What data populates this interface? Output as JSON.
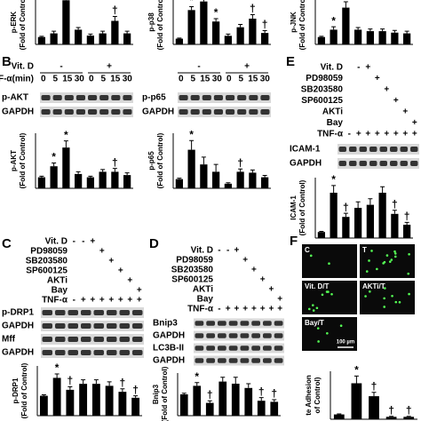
{
  "chart_data": [
    {
      "type": "bar",
      "ylabel": [
        "p-ERK",
        "(Fold of Control)"
      ],
      "color": "#000000",
      "ylim": [
        0,
        7
      ],
      "values": [
        1,
        1.5,
        6,
        2,
        1.2,
        1.5,
        3.2,
        1.5
      ],
      "errors": [
        0.1,
        0.3,
        1.0,
        0.3,
        0.2,
        0.3,
        0.6,
        0.3
      ],
      "annotations": [
        null,
        null,
        null,
        null,
        null,
        null,
        "†",
        null
      ]
    },
    {
      "type": "bar",
      "ylabel": [
        "p-p38",
        "(Fold of Control)"
      ],
      "color": "#000000",
      "ylim": [
        0,
        9
      ],
      "values": [
        1,
        6,
        7.5,
        4,
        1.5,
        3,
        4.5,
        2
      ],
      "errors": [
        0.1,
        0.6,
        0.8,
        0.5,
        0.3,
        0.5,
        0.7,
        0.4
      ],
      "annotations": [
        null,
        "*",
        null,
        "*",
        null,
        null,
        "†",
        "†"
      ]
    },
    {
      "type": "bar",
      "ylabel": [
        "p-JNK",
        "(Fold of Control)"
      ],
      "color": "#000000",
      "ylim": [
        0,
        7
      ],
      "values": [
        1,
        2,
        5,
        2,
        1.8,
        1.8,
        1.6,
        1.5
      ],
      "errors": [
        0.1,
        0.4,
        0.8,
        0.3,
        0.3,
        0.3,
        0.3,
        0.3
      ],
      "annotations": [
        null,
        "*",
        null,
        null,
        null,
        null,
        null,
        null
      ]
    },
    {
      "type": "bar",
      "ylabel": [
        "p-AKT",
        "(Fold of Control)"
      ],
      "color": "#000000",
      "ylim": [
        0,
        5
      ],
      "values": [
        1,
        2,
        3.7,
        1.3,
        1,
        1.5,
        1.5,
        1.2
      ],
      "errors": [
        0.1,
        0.3,
        0.6,
        0.2,
        0.1,
        0.2,
        0.3,
        0.2
      ],
      "annotations": [
        null,
        "*",
        "*",
        null,
        null,
        null,
        "†",
        null
      ]
    },
    {
      "type": "bar",
      "ylabel": [
        "p-p65",
        "(Fold of Control)"
      ],
      "color": "#000000",
      "ylim": [
        0,
        6
      ],
      "values": [
        1,
        4.2,
        2.6,
        1.8,
        0.5,
        1.8,
        1.7,
        1.2
      ],
      "errors": [
        0.1,
        1.0,
        0.8,
        0.8,
        0.1,
        0.3,
        0.3,
        0.2
      ],
      "annotations": [
        null,
        "*",
        null,
        null,
        null,
        "†",
        null,
        null
      ]
    },
    {
      "type": "bar",
      "ylabel": [
        "ICAM-1",
        "(Fold of Control)"
      ],
      "color": "#000000",
      "ylim": [
        0,
        10
      ],
      "values": [
        1,
        7.5,
        3.5,
        5,
        5.5,
        7.5,
        4,
        2.2
      ],
      "errors": [
        0.1,
        1.2,
        0.6,
        1.0,
        1.0,
        1.0,
        0.6,
        0.4
      ],
      "annotations": [
        null,
        "*",
        "†",
        null,
        null,
        null,
        "†",
        "†"
      ]
    },
    {
      "type": "bar",
      "ylabel": [
        "p-DRP1",
        "(Fold of Control)"
      ],
      "color": "#000000",
      "ylim": [
        0,
        2.5
      ],
      "values": [
        1,
        1.9,
        1.3,
        1.6,
        1.6,
        1.5,
        1.2,
        0.9
      ],
      "errors": [
        0.05,
        0.2,
        0.15,
        0.2,
        0.2,
        0.2,
        0.15,
        0.1
      ],
      "annotations": [
        null,
        "*",
        "†",
        null,
        null,
        null,
        "†",
        "†"
      ]
    },
    {
      "type": "bar",
      "ylabel": [
        "Bnip3",
        "(Fold of Control)"
      ],
      "color": "#000000",
      "ylim": [
        0,
        2
      ],
      "values": [
        1,
        1.4,
        0.6,
        1.6,
        1.5,
        1.3,
        0.7,
        0.65
      ],
      "errors": [
        0.05,
        0.15,
        0.1,
        0.2,
        0.3,
        0.2,
        0.15,
        0.1
      ],
      "annotations": [
        null,
        "*",
        "†",
        null,
        null,
        null,
        "†",
        "†"
      ]
    },
    {
      "type": "bar",
      "ylabel": [
        "te Adhesion",
        "of Control)"
      ],
      "color": "#000000",
      "ylim": [
        0,
        10
      ],
      "values": [
        1,
        7.5,
        4.8,
        0.5,
        0.5
      ],
      "errors": [
        0.1,
        1.5,
        0.8,
        0.1,
        0.1
      ],
      "annotations": [
        null,
        "*",
        "†",
        "†",
        "†"
      ]
    }
  ],
  "panel_B": {
    "letter": "B",
    "rows": [
      {
        "label": "Vit. D",
        "cells": [
          "-",
          "+"
        ]
      },
      {
        "label": "TNF-α(min)",
        "cells": [
          "0",
          "5",
          "15",
          "30",
          "0",
          "5",
          "15",
          "30"
        ]
      }
    ],
    "blots_left": [
      "p-AKT",
      "GAPDH"
    ],
    "blots_right": [
      "p-p65",
      "GAPDH"
    ]
  },
  "panel_E": {
    "letter": "E",
    "rows": [
      {
        "label": "Vit. D",
        "cells": [
          null,
          "-",
          "+",
          null,
          null,
          null,
          null,
          null
        ]
      },
      {
        "label": "PD98059",
        "cells": [
          null,
          null,
          null,
          "+",
          null,
          null,
          null,
          null
        ]
      },
      {
        "label": "SB203580",
        "cells": [
          null,
          null,
          null,
          null,
          "+",
          null,
          null,
          null
        ]
      },
      {
        "label": "SP600125",
        "cells": [
          null,
          null,
          null,
          null,
          null,
          "+",
          null,
          null
        ]
      },
      {
        "label": "AKTi",
        "cells": [
          null,
          null,
          null,
          null,
          null,
          null,
          "+",
          null
        ]
      },
      {
        "label": "Bay",
        "cells": [
          null,
          null,
          null,
          null,
          null,
          null,
          null,
          "+"
        ]
      },
      {
        "label": "TNF-α",
        "cells": [
          "-",
          "+",
          "+",
          "+",
          "+",
          "+",
          "+",
          "+"
        ]
      }
    ],
    "blots": [
      "ICAM-1",
      "GAPDH"
    ]
  },
  "panel_C": {
    "letter": "C",
    "rows": [
      {
        "label": "Vit. D",
        "cells": [
          "-",
          "-",
          "+",
          null,
          null,
          null,
          null,
          null
        ]
      },
      {
        "label": "PD98059",
        "cells": [
          null,
          null,
          null,
          "+",
          null,
          null,
          null,
          null
        ]
      },
      {
        "label": "SB203580",
        "cells": [
          null,
          null,
          null,
          null,
          "+",
          null,
          null,
          null
        ]
      },
      {
        "label": "SP600125",
        "cells": [
          null,
          null,
          null,
          null,
          null,
          "+",
          null,
          null
        ]
      },
      {
        "label": "AKTi",
        "cells": [
          null,
          null,
          null,
          null,
          null,
          null,
          "+",
          null
        ]
      },
      {
        "label": "Bay",
        "cells": [
          null,
          null,
          null,
          null,
          null,
          null,
          null,
          "+"
        ]
      },
      {
        "label": "TNF-α",
        "cells": [
          "-",
          "+",
          "+",
          "+",
          "+",
          "+",
          "+",
          "+"
        ]
      }
    ],
    "blots": [
      "p-DRP1",
      "GAPDH",
      "Mff",
      "GAPDH"
    ]
  },
  "panel_D": {
    "letter": "D",
    "rows": [
      {
        "label": "Vit. D",
        "cells": [
          "-",
          "-",
          "+",
          null,
          null,
          null,
          null,
          null
        ]
      },
      {
        "label": "PD98059",
        "cells": [
          null,
          null,
          null,
          "+",
          null,
          null,
          null,
          null
        ]
      },
      {
        "label": "SB203580",
        "cells": [
          null,
          null,
          null,
          null,
          "+",
          null,
          null,
          null
        ]
      },
      {
        "label": "SP600125",
        "cells": [
          null,
          null,
          null,
          null,
          null,
          "+",
          null,
          null
        ]
      },
      {
        "label": "AKTi",
        "cells": [
          null,
          null,
          null,
          null,
          null,
          null,
          "+",
          null
        ]
      },
      {
        "label": "Bay",
        "cells": [
          null,
          null,
          null,
          null,
          null,
          null,
          null,
          "+"
        ]
      },
      {
        "label": "TNF-α",
        "cells": [
          "-",
          "+",
          "+",
          "+",
          "+",
          "+",
          "+",
          "+"
        ]
      }
    ],
    "blots": [
      "Bnip3",
      "GAPDH",
      "LC3B-II",
      "GAPDH"
    ]
  },
  "panel_F": {
    "letter": "F",
    "images": [
      "C",
      "T",
      "Vit. D/T",
      "AKTi/T",
      "Bay/T"
    ],
    "scale": "100 µm"
  }
}
